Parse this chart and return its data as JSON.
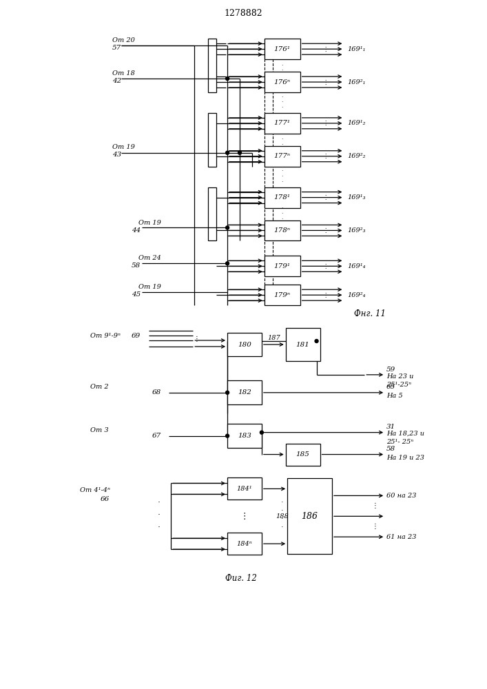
{
  "title": "1278882",
  "background": "#ffffff",
  "fig11": {
    "block_labels": [
      "176¹",
      "176ⁿ",
      "177¹",
      "177ⁿ",
      "178¹",
      "178ⁿ",
      "179¹",
      "179ⁿ"
    ],
    "out_labels": [
      "169¹₁",
      "169²₁",
      "169¹₂",
      "169²₂",
      "169¹₃",
      "169²₃",
      "169¹₄",
      "169²₄"
    ],
    "input_labels": [
      [
        "Om 20",
        "57"
      ],
      [
        "Om 18",
        "42"
      ],
      [
        "Om 19",
        "43"
      ],
      [
        "Om 19",
        "44"
      ],
      [
        "Om 24",
        "58"
      ],
      [
        "Om 19",
        "45"
      ]
    ],
    "fig_label": "Фнг. 11"
  },
  "fig12": {
    "fig_label": "Фиг. 12"
  }
}
